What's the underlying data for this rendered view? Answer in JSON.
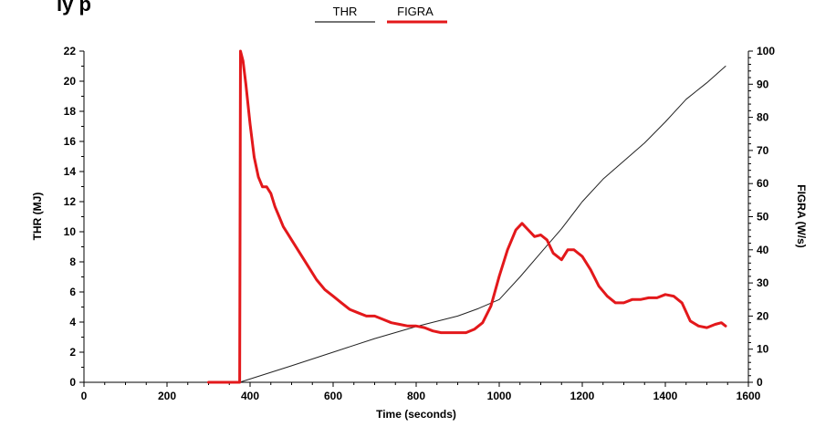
{
  "page": {
    "top_cut_text": "ly p"
  },
  "chart_data": {
    "type": "line",
    "legend_position": "top-center",
    "x_label": "Time (seconds)",
    "y_left_label": "THR (MJ)",
    "y_right_label": "FIGRA (W/s)",
    "x_range": [
      0,
      1600
    ],
    "y_left_range": [
      0,
      22
    ],
    "y_right_range": [
      0,
      100
    ],
    "x_ticks": [
      0,
      200,
      400,
      600,
      800,
      1000,
      1200,
      1400,
      1600
    ],
    "y_left_ticks": [
      0,
      2,
      4,
      6,
      8,
      10,
      12,
      14,
      16,
      18,
      20,
      22
    ],
    "y_right_ticks": [
      0,
      10,
      20,
      30,
      40,
      50,
      60,
      70,
      80,
      90,
      100
    ],
    "grid": false,
    "series": [
      {
        "name": "THR",
        "color": "#222222",
        "axis": "left",
        "points": [
          [
            375,
            0
          ],
          [
            500,
            1.1
          ],
          [
            600,
            2.0
          ],
          [
            700,
            2.9
          ],
          [
            800,
            3.7
          ],
          [
            900,
            4.4
          ],
          [
            950,
            4.9
          ],
          [
            1000,
            5.5
          ],
          [
            1050,
            7.0
          ],
          [
            1100,
            8.6
          ],
          [
            1150,
            10.2
          ],
          [
            1200,
            12.0
          ],
          [
            1250,
            13.5
          ],
          [
            1300,
            14.7
          ],
          [
            1350,
            15.9
          ],
          [
            1400,
            17.3
          ],
          [
            1450,
            18.8
          ],
          [
            1500,
            19.9
          ],
          [
            1545,
            21.0
          ]
        ]
      },
      {
        "name": "FIGRA",
        "color": "#e3181b",
        "axis": "right",
        "points": [
          [
            300,
            0
          ],
          [
            375,
            0
          ],
          [
            377,
            100
          ],
          [
            383,
            97
          ],
          [
            390,
            90
          ],
          [
            400,
            78
          ],
          [
            410,
            68
          ],
          [
            420,
            62
          ],
          [
            430,
            59
          ],
          [
            440,
            59
          ],
          [
            450,
            57
          ],
          [
            460,
            53
          ],
          [
            470,
            50
          ],
          [
            480,
            47
          ],
          [
            490,
            45
          ],
          [
            500,
            43
          ],
          [
            520,
            39
          ],
          [
            540,
            35
          ],
          [
            560,
            31
          ],
          [
            580,
            28
          ],
          [
            600,
            26
          ],
          [
            620,
            24
          ],
          [
            640,
            22
          ],
          [
            660,
            21
          ],
          [
            680,
            20
          ],
          [
            700,
            20
          ],
          [
            720,
            19
          ],
          [
            740,
            18
          ],
          [
            760,
            17.5
          ],
          [
            780,
            17
          ],
          [
            800,
            17
          ],
          [
            820,
            16.5
          ],
          [
            840,
            15.5
          ],
          [
            860,
            15
          ],
          [
            880,
            15
          ],
          [
            900,
            15
          ],
          [
            920,
            15
          ],
          [
            940,
            16
          ],
          [
            960,
            18
          ],
          [
            980,
            23
          ],
          [
            1000,
            32
          ],
          [
            1020,
            40
          ],
          [
            1040,
            46
          ],
          [
            1055,
            48
          ],
          [
            1070,
            46
          ],
          [
            1085,
            44
          ],
          [
            1100,
            44.5
          ],
          [
            1115,
            43
          ],
          [
            1130,
            39
          ],
          [
            1150,
            37
          ],
          [
            1165,
            40
          ],
          [
            1180,
            40
          ],
          [
            1200,
            38
          ],
          [
            1220,
            34
          ],
          [
            1240,
            29
          ],
          [
            1260,
            26
          ],
          [
            1280,
            24
          ],
          [
            1300,
            24
          ],
          [
            1320,
            25
          ],
          [
            1340,
            25
          ],
          [
            1360,
            25.5
          ],
          [
            1380,
            25.5
          ],
          [
            1400,
            26.5
          ],
          [
            1420,
            26
          ],
          [
            1440,
            24
          ],
          [
            1460,
            18.5
          ],
          [
            1480,
            17
          ],
          [
            1500,
            16.5
          ],
          [
            1520,
            17.5
          ],
          [
            1535,
            18
          ],
          [
            1545,
            17
          ]
        ]
      }
    ]
  }
}
